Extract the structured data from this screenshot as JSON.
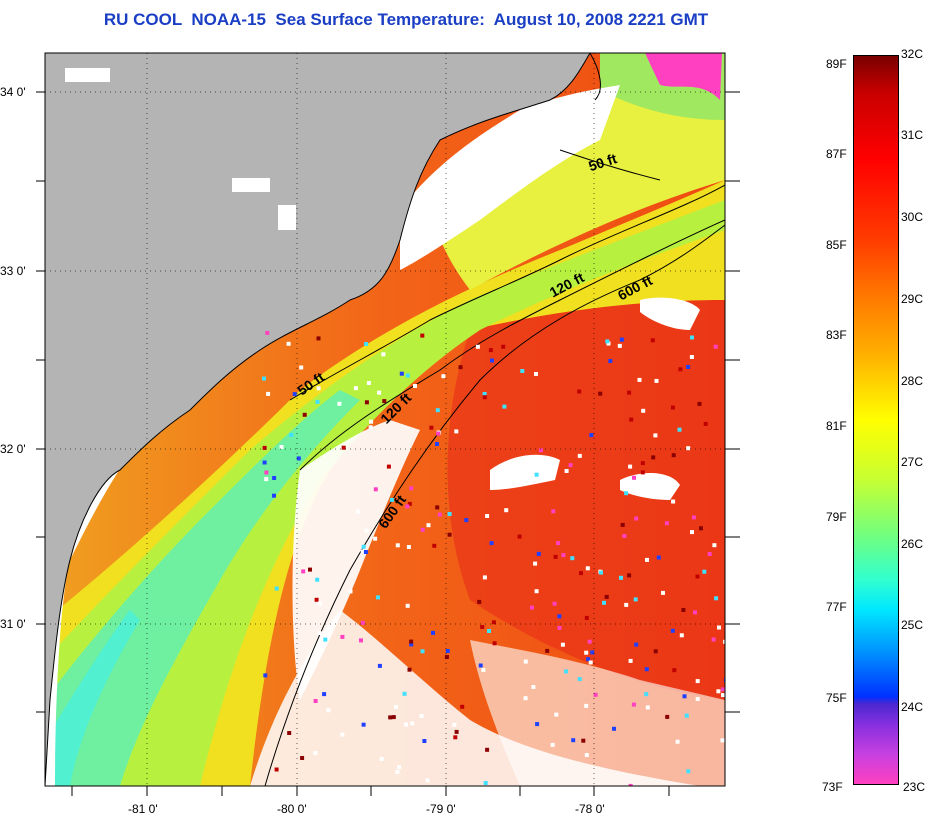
{
  "title": "RU COOL  NOAA-15  Sea Surface Temperature:  August 10, 2008 2221 GMT",
  "axes": {
    "lat_ticks": [
      "34 0'",
      "33 0'",
      "32 0'",
      "31 0'"
    ],
    "lon_ticks": [
      "-81 0'",
      "-80 0'",
      "-79 0'",
      "-78 0'"
    ]
  },
  "contours": {
    "c50a": "50 ft",
    "c120a": "120 ft",
    "c600a": "600 ft",
    "c50b": "50 ft",
    "c120b": "120 ft",
    "c600b": "600 ft"
  },
  "colorbar": {
    "fahrenheit": [
      "89F",
      "87F",
      "85F",
      "83F",
      "81F",
      "79F",
      "77F",
      "75F",
      "73F"
    ],
    "celsius": [
      "32C",
      "31C",
      "30C",
      "29C",
      "28C",
      "27C",
      "26C",
      "25C",
      "24C",
      "23C"
    ]
  },
  "colors": {
    "land": "#b4b4b4",
    "cloud": "#ffffff",
    "warm": "#f25a10",
    "title": "#1a3ec4"
  }
}
